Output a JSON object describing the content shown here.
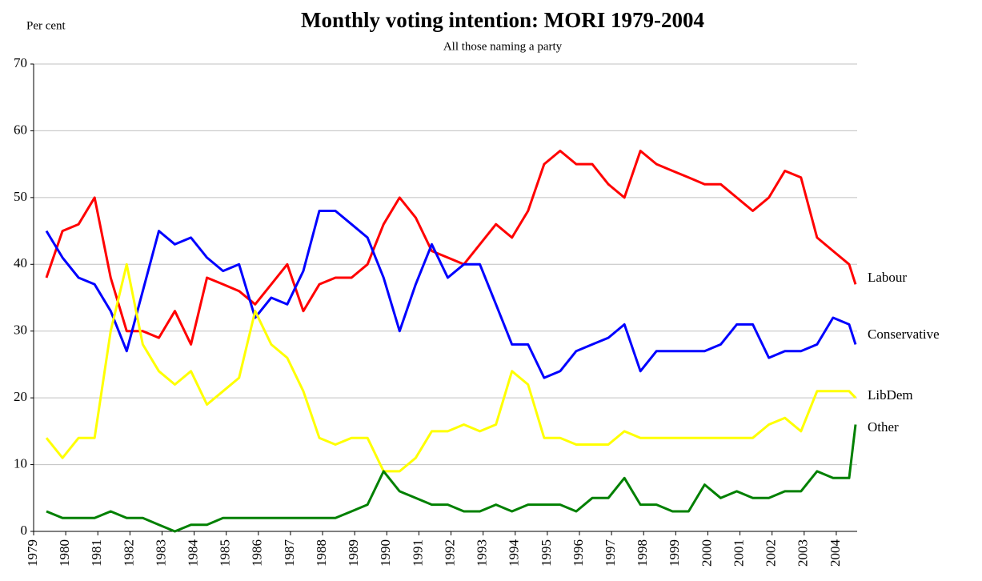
{
  "chart_data": {
    "type": "line",
    "title": "Monthly voting intention: MORI 1979-2004",
    "subtitle": "All those naming a party",
    "y_label": "Per cent",
    "x": [
      1979.4,
      1979.9,
      1980.4,
      1980.9,
      1981.4,
      1981.9,
      1982.4,
      1982.9,
      1983.4,
      1983.9,
      1984.4,
      1984.9,
      1985.4,
      1985.9,
      1986.4,
      1986.9,
      1987.4,
      1987.9,
      1988.4,
      1988.9,
      1989.4,
      1989.9,
      1990.4,
      1990.9,
      1991.4,
      1991.9,
      1992.4,
      1992.9,
      1993.4,
      1993.9,
      1994.4,
      1994.9,
      1995.4,
      1995.9,
      1996.4,
      1996.9,
      1997.4,
      1997.9,
      1998.4,
      1998.9,
      1999.4,
      1999.9,
      2000.4,
      2000.9,
      2001.4,
      2001.9,
      2002.4,
      2002.9,
      2003.4,
      2003.9,
      2004.4,
      2004.6
    ],
    "series": [
      {
        "name": "Labour",
        "color": "#ff0000",
        "values": [
          38,
          45,
          46,
          50,
          38,
          30,
          30,
          29,
          33,
          28,
          38,
          37,
          36,
          34,
          37,
          40,
          33,
          37,
          38,
          38,
          40,
          46,
          50,
          47,
          42,
          41,
          40,
          43,
          46,
          44,
          48,
          55,
          57,
          55,
          55,
          52,
          50,
          57,
          55,
          54,
          53,
          52,
          52,
          50,
          48,
          50,
          54,
          53,
          44,
          42,
          40,
          37
        ]
      },
      {
        "name": "Conservative",
        "color": "#0000ff",
        "values": [
          45,
          41,
          38,
          37,
          33,
          27,
          36,
          45,
          43,
          44,
          41,
          39,
          40,
          32,
          35,
          34,
          39,
          48,
          48,
          46,
          44,
          38,
          30,
          37,
          43,
          38,
          40,
          40,
          34,
          28,
          28,
          23,
          24,
          27,
          28,
          29,
          31,
          24,
          27,
          27,
          27,
          27,
          28,
          31,
          31,
          26,
          27,
          27,
          28,
          32,
          31,
          28
        ]
      },
      {
        "name": "LibDem",
        "color": "#ffff00",
        "values": [
          14,
          11,
          14,
          14,
          30,
          40,
          28,
          24,
          22,
          24,
          19,
          21,
          23,
          33,
          28,
          26,
          21,
          14,
          13,
          14,
          14,
          9,
          9,
          11,
          15,
          15,
          16,
          15,
          16,
          24,
          22,
          14,
          14,
          13,
          13,
          13,
          15,
          14,
          14,
          14,
          14,
          14,
          14,
          14,
          14,
          16,
          17,
          15,
          21,
          21,
          21,
          20
        ]
      },
      {
        "name": "Other",
        "color": "#008000",
        "values": [
          3,
          2,
          2,
          2,
          3,
          2,
          2,
          1,
          0,
          1,
          1,
          2,
          2,
          2,
          2,
          2,
          2,
          2,
          2,
          3,
          4,
          9,
          6,
          5,
          4,
          4,
          3,
          3,
          4,
          3,
          4,
          4,
          4,
          3,
          5,
          5,
          8,
          4,
          4,
          3,
          3,
          7,
          5,
          6,
          5,
          5,
          6,
          6,
          9,
          8,
          8,
          16
        ]
      }
    ],
    "xlim": [
      1979,
      2004.65
    ],
    "xticks": [
      1979,
      1980,
      1981,
      1982,
      1983,
      1984,
      1985,
      1986,
      1987,
      1988,
      1989,
      1990,
      1991,
      1992,
      1993,
      1994,
      1995,
      1996,
      1997,
      1998,
      1999,
      2000,
      2001,
      2002,
      2003,
      2004
    ],
    "ylim": [
      0,
      70
    ],
    "yticks": [
      0,
      10,
      20,
      30,
      40,
      50,
      60,
      70
    ],
    "grid": true,
    "legend": "right"
  }
}
